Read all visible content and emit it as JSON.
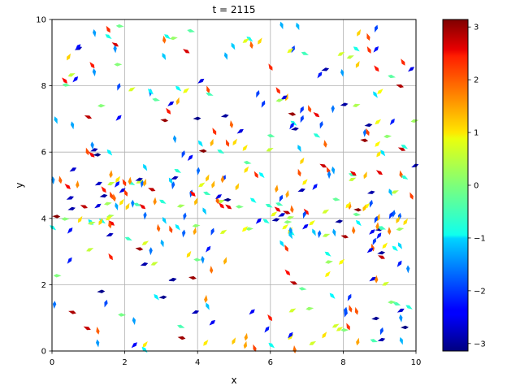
{
  "chart_data": {
    "type": "quiver",
    "title": "t = 2115",
    "xlabel": "x",
    "ylabel": "y",
    "xlim": [
      0,
      10
    ],
    "ylim": [
      0,
      10
    ],
    "xticks": [
      "0",
      "2",
      "4",
      "6",
      "8",
      "10"
    ],
    "yticks": [
      "0",
      "2",
      "4",
      "6",
      "8",
      "10"
    ],
    "grid": true,
    "colorbar": {
      "colormap": "jet",
      "range": [
        -3.14159,
        3.14159
      ],
      "ticks": [
        "−3",
        "−2",
        "−1",
        "0",
        "1",
        "2",
        "3"
      ]
    },
    "particle_count": 400,
    "seed": 2115
  }
}
